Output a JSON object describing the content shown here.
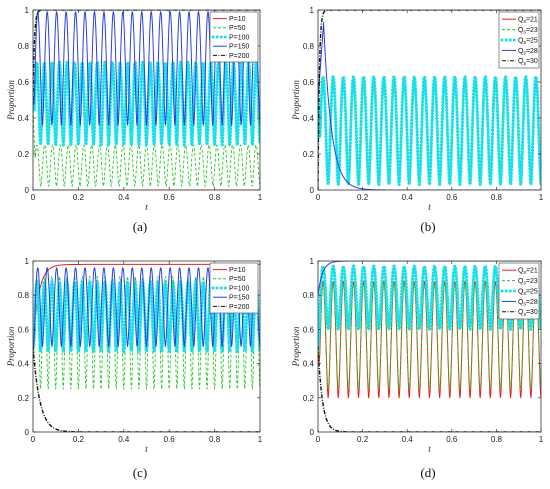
{
  "colors": {
    "red": "#e8231f",
    "green": "#22cc22",
    "cyan": "#18e0e8",
    "blue": "#2b3fe0",
    "black": "#111111"
  },
  "chart_data": [
    {
      "type": "line",
      "caption": "(a)",
      "xlabel": "t",
      "ylabel": "Proportion",
      "xlim": [
        0,
        1
      ],
      "ylim": [
        0,
        1
      ],
      "xticks": [
        "0",
        "0.2",
        "0.4",
        "0.6",
        "0.8",
        "1"
      ],
      "yticks": [
        "0",
        "0.2",
        "0.4",
        "0.6",
        "0.8",
        "1"
      ],
      "legend_position": "top-right",
      "series": [
        {
          "name": "P=10",
          "kind": "flat",
          "start": 0.0,
          "end": 0.0,
          "decay": 0.005,
          "color": "red",
          "dash": "solid"
        },
        {
          "name": "P=50",
          "kind": "osc",
          "min": 0.02,
          "max": 0.25,
          "cycles": 29,
          "color": "green",
          "dash": "dashed"
        },
        {
          "name": "P=100",
          "kind": "osc",
          "min": 0.25,
          "max": 0.71,
          "cycles": 30,
          "color": "cyan",
          "dash": "dots"
        },
        {
          "name": "P=150",
          "kind": "osc",
          "min": 0.36,
          "max": 0.99,
          "cycles": 24,
          "color": "blue",
          "dash": "solid"
        },
        {
          "name": "P=200",
          "kind": "flat",
          "start": 0.5,
          "end": 1.0,
          "decay": 0.006,
          "color": "black",
          "dash": "dashdot"
        }
      ]
    },
    {
      "type": "line",
      "caption": "(b)",
      "xlabel": "t",
      "ylabel": "Proportion",
      "xlim": [
        0,
        1
      ],
      "ylim": [
        0,
        1
      ],
      "xticks": [
        "0",
        "0.2",
        "0.4",
        "0.6",
        "0.8",
        "1"
      ],
      "yticks": [
        "0",
        "0.2",
        "0.4",
        "0.6",
        "0.8",
        "1"
      ],
      "legend_position": "top-right",
      "series": [
        {
          "name": "Q",
          "sub": "s",
          "suffix": "=21",
          "kind": "osc",
          "min": 0.03,
          "max": 0.62,
          "cycles": 22,
          "color": "red",
          "dash": "solid"
        },
        {
          "name": "Q",
          "sub": "s",
          "suffix": "=23",
          "kind": "osc",
          "min": 0.05,
          "max": 0.58,
          "cycles": 22,
          "color": "green",
          "dash": "dashed"
        },
        {
          "name": "Q",
          "sub": "s",
          "suffix": "=25",
          "kind": "osc",
          "min": 0.03,
          "max": 0.63,
          "cycles": 22,
          "color": "cyan",
          "dash": "dots"
        },
        {
          "name": "Q",
          "sub": "s",
          "suffix": "=28",
          "kind": "hump",
          "start": 0.5,
          "peak": 0.93,
          "peakAt": 0.025,
          "end": 0.0,
          "fall": 0.035,
          "color": "blue",
          "dash": "solid"
        },
        {
          "name": "Q",
          "sub": "s",
          "suffix": "=30",
          "kind": "flat",
          "start": 0.0,
          "end": 1.0,
          "decay": 0.006,
          "color": "black",
          "dash": "dashdot"
        }
      ]
    },
    {
      "type": "line",
      "caption": "(c)",
      "xlabel": "t",
      "ylabel": "Proportion",
      "xlim": [
        0,
        1
      ],
      "ylim": [
        0,
        1
      ],
      "xticks": [
        "0",
        "0.2",
        "0.4",
        "0.6",
        "0.8",
        "1"
      ],
      "yticks": [
        "0",
        "0.2",
        "0.4",
        "0.6",
        "0.8",
        "1"
      ],
      "legend_position": "top-right",
      "series": [
        {
          "name": "P=10",
          "kind": "flat",
          "start": 0.5,
          "end": 0.98,
          "decay": 0.025,
          "color": "red",
          "dash": "solid"
        },
        {
          "name": "P=50",
          "kind": "osc",
          "min": 0.25,
          "max": 0.91,
          "cycles": 30,
          "color": "green",
          "dash": "dashed"
        },
        {
          "name": "P=100",
          "kind": "osc",
          "min": 0.47,
          "max": 0.88,
          "cycles": 30,
          "color": "cyan",
          "dash": "dots"
        },
        {
          "name": "P=150",
          "kind": "osc",
          "min": 0.5,
          "max": 0.96,
          "cycles": 24,
          "color": "blue",
          "dash": "solid"
        },
        {
          "name": "P=200",
          "kind": "flat",
          "start": 0.5,
          "end": 0.0,
          "decay": 0.03,
          "color": "black",
          "dash": "dashdot"
        }
      ]
    },
    {
      "type": "line",
      "caption": "(d)",
      "xlabel": "t",
      "ylabel": "Proportion",
      "xlim": [
        0,
        1
      ],
      "ylim": [
        0,
        1
      ],
      "xticks": [
        "0",
        "0.2",
        "0.4",
        "0.6",
        "0.8",
        "1"
      ],
      "yticks": [
        "0",
        "0.2",
        "0.4",
        "0.6",
        "0.8",
        "1"
      ],
      "legend_position": "top-right",
      "series": [
        {
          "name": "Q",
          "sub": "s",
          "suffix": "=21",
          "kind": "osc",
          "min": 0.2,
          "max": 0.88,
          "cycles": 22,
          "color": "red",
          "dash": "solid"
        },
        {
          "name": "Q",
          "sub": "s",
          "suffix": "=23",
          "kind": "osc",
          "min": 0.25,
          "max": 0.86,
          "cycles": 22,
          "color": "green",
          "dash": "dashed"
        },
        {
          "name": "Q",
          "sub": "s",
          "suffix": "=25",
          "kind": "osc",
          "min": 0.6,
          "max": 0.97,
          "cycles": 22,
          "color": "cyan",
          "dash": "dots"
        },
        {
          "name": "Q",
          "sub": "s",
          "suffix": "=28",
          "kind": "flat",
          "start": 0.8,
          "end": 1.0,
          "decay": 0.02,
          "color": "blue",
          "dash": "solid"
        },
        {
          "name": "Q",
          "sub": "s",
          "suffix": "=30",
          "kind": "flat",
          "start": 0.5,
          "end": 0.0,
          "decay": 0.02,
          "color": "black",
          "dash": "dashdot"
        }
      ]
    }
  ]
}
